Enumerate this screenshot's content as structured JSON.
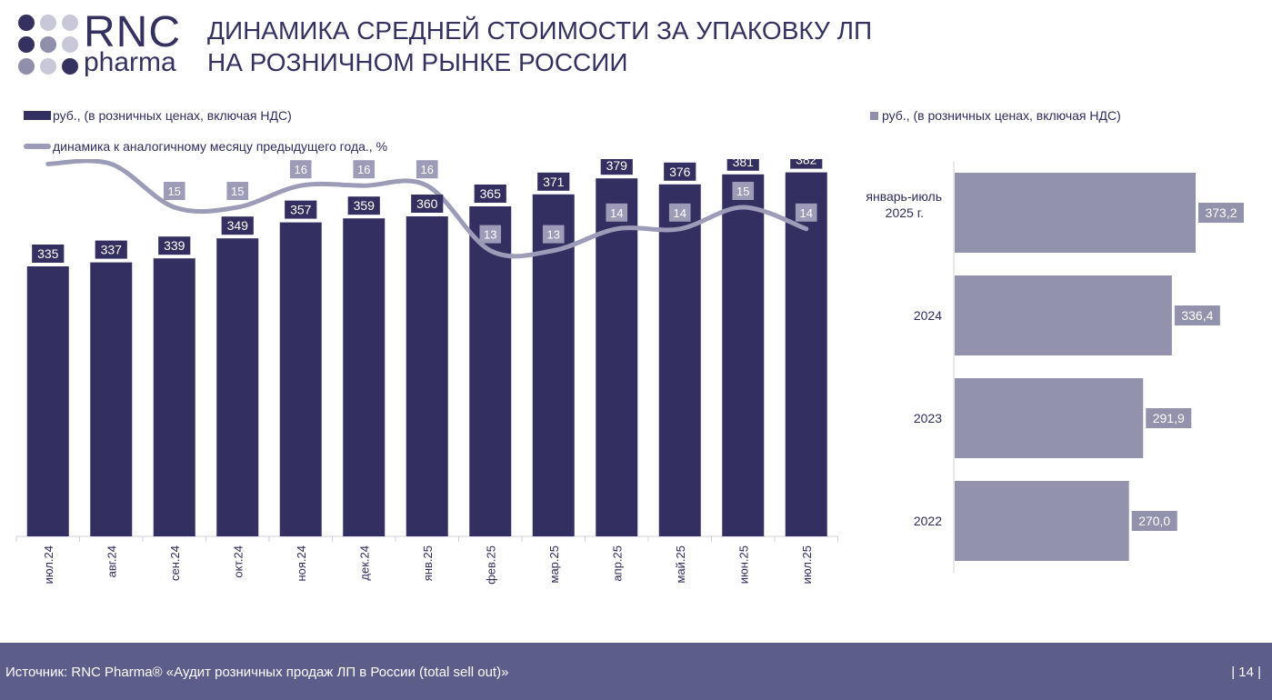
{
  "logo": {
    "rnc": "RNC",
    "pharma": "pharma"
  },
  "header": {
    "title_line1": "ДИНАМИКА СРЕДНЕЙ СТОИМОСТИ ЗА УПАКОВКУ ЛП",
    "title_line2": "НА РОЗНИЧНОМ РЫНКЕ РОССИИ"
  },
  "legend": {
    "bars": "руб., (в розничных ценах, включая НДС)",
    "line": "динамика к аналогичному месяцу предыдущего года., %",
    "right": "руб., (в розничных ценах, включая НДС)"
  },
  "colors": {
    "bar": "#332f60",
    "line": "#9c9bb8",
    "line_label": "#9c9bb8",
    "hbar": "#9292ad",
    "footer": "#5d5d89"
  },
  "chart_data": [
    {
      "type": "bar",
      "categories": [
        "июл.24",
        "авг.24",
        "сен.24",
        "окт.24",
        "ноя.24",
        "дек.24",
        "янв.25",
        "фев.25",
        "мар.25",
        "апр.25",
        "май.25",
        "июн.25",
        "июл.25"
      ],
      "series": [
        {
          "name": "руб., (в розничных ценах, включая НДС)",
          "type": "bar",
          "values": [
            335,
            337,
            339,
            349,
            357,
            359,
            360,
            365,
            371,
            379,
            376,
            381,
            382
          ]
        },
        {
          "name": "динамика к аналогичному месяцу предыдущего года., %",
          "type": "line",
          "values": [
            17,
            17,
            15,
            15,
            16,
            16,
            16,
            13,
            13,
            14,
            14,
            15,
            14
          ]
        }
      ],
      "legend": "top-left",
      "grid": false
    },
    {
      "type": "bar",
      "orientation": "horizontal",
      "categories": [
        "январь-июль 2025 г.",
        "2024",
        "2023",
        "2022"
      ],
      "values": [
        373.2,
        336.4,
        291.9,
        270.0
      ],
      "value_labels": [
        "373,2",
        "336,4",
        "291,9",
        "270,0"
      ],
      "legend": "top-left",
      "grid": false
    }
  ],
  "footer": {
    "source": "Источник: RNC Pharma® «Аудит розничных продаж ЛП в России (total sell out)»",
    "page": "| 14 |"
  }
}
